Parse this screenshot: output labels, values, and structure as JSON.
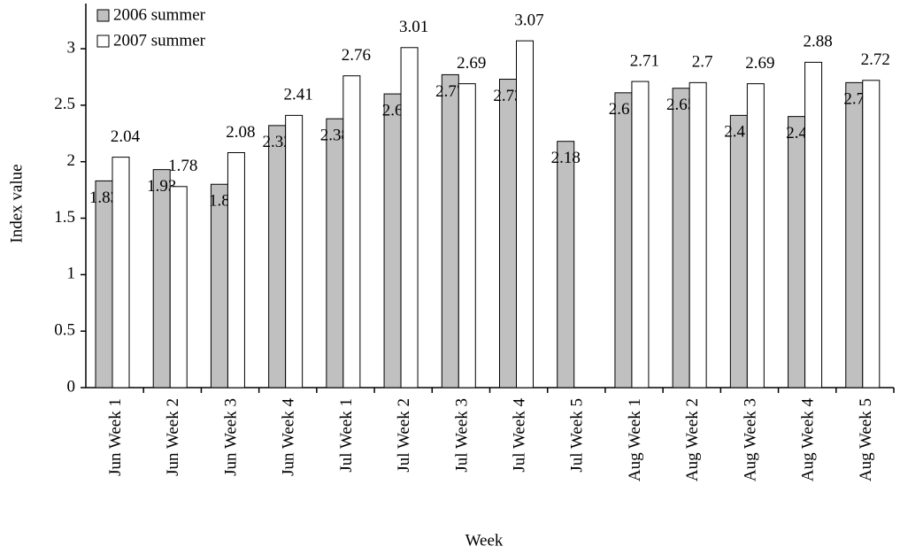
{
  "chart_data": {
    "type": "bar",
    "x_label": "Week",
    "y_label": "Index value",
    "categories": [
      "Jun Week 1",
      "Jun Week 2",
      "Jun Week 3",
      "Jun Week 4",
      "Jul Week 1",
      "Jul Week 2",
      "Jul Week 3",
      "Jul Week 4",
      "Jul Week 5",
      "Aug Week 1",
      "Aug Week 2",
      "Aug Week 3",
      "Aug Week 4",
      "Aug Week 5"
    ],
    "series": [
      {
        "name": "2006 summer",
        "color": "#c0c0c0",
        "values": [
          1.83,
          1.93,
          1.8,
          2.32,
          2.38,
          2.6,
          2.77,
          2.73,
          2.18,
          2.61,
          2.65,
          2.41,
          2.4,
          2.7
        ]
      },
      {
        "name": "2007 summer",
        "color": "#ffffff",
        "values": [
          2.04,
          1.78,
          2.08,
          2.41,
          2.76,
          3.01,
          2.69,
          3.07,
          null,
          2.71,
          2.7,
          2.69,
          2.88,
          2.72
        ]
      }
    ],
    "ylim": [
      0,
      3.4
    ],
    "yticks": [
      0,
      0.5,
      1,
      1.5,
      2,
      2.5,
      3
    ],
    "legend": "top-left"
  }
}
